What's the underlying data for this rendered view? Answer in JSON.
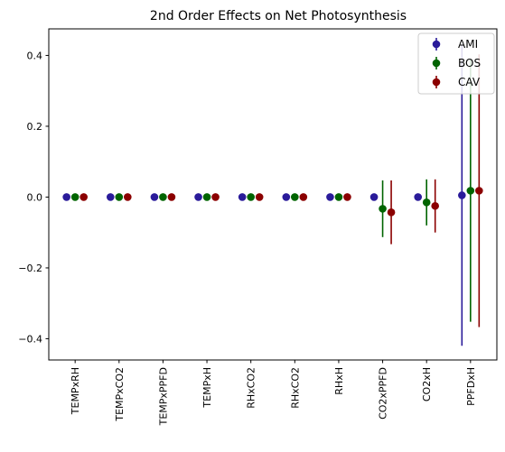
{
  "chart_data": {
    "type": "scatter",
    "title": "2nd Order Effects on Net Photosynthesis",
    "xlabel": "",
    "ylabel": "",
    "categories": [
      "TEMPxRH",
      "TEMPxCO2",
      "TEMPxPPFD",
      "TEMPxH",
      "RHxCO2",
      "RHxCO2",
      "RHxH",
      "CO2xPPFD",
      "CO2xH",
      "PPFDxH"
    ],
    "ylim": [
      -0.46,
      0.475
    ],
    "yticks": [
      -0.4,
      -0.2,
      0.0,
      0.2,
      0.4
    ],
    "ytick_labels": [
      "−0.4",
      "−0.2",
      "0.0",
      "0.2",
      "0.4"
    ],
    "grid": false,
    "legend_position": "top-right",
    "series": [
      {
        "name": "AMI",
        "color": "#2a1b9a",
        "values": [
          0,
          0,
          0,
          0,
          0,
          0,
          0,
          0,
          0,
          0.005
        ],
        "errors": [
          0,
          0,
          0,
          0,
          0,
          0,
          0,
          0,
          0,
          0.425
        ]
      },
      {
        "name": "BOS",
        "color": "#006400",
        "values": [
          0,
          0,
          0,
          0,
          0,
          0,
          0,
          -0.033,
          -0.015,
          0.018
        ],
        "errors": [
          0,
          0,
          0,
          0,
          0,
          0,
          0,
          0.08,
          0.065,
          0.37
        ]
      },
      {
        "name": "CAV",
        "color": "#8b0000",
        "values": [
          0,
          0,
          0,
          0,
          0,
          0,
          0,
          -0.043,
          -0.025,
          0.018
        ],
        "errors": [
          0,
          0,
          0,
          0,
          0,
          0,
          0,
          0.09,
          0.075,
          0.385
        ]
      }
    ]
  }
}
